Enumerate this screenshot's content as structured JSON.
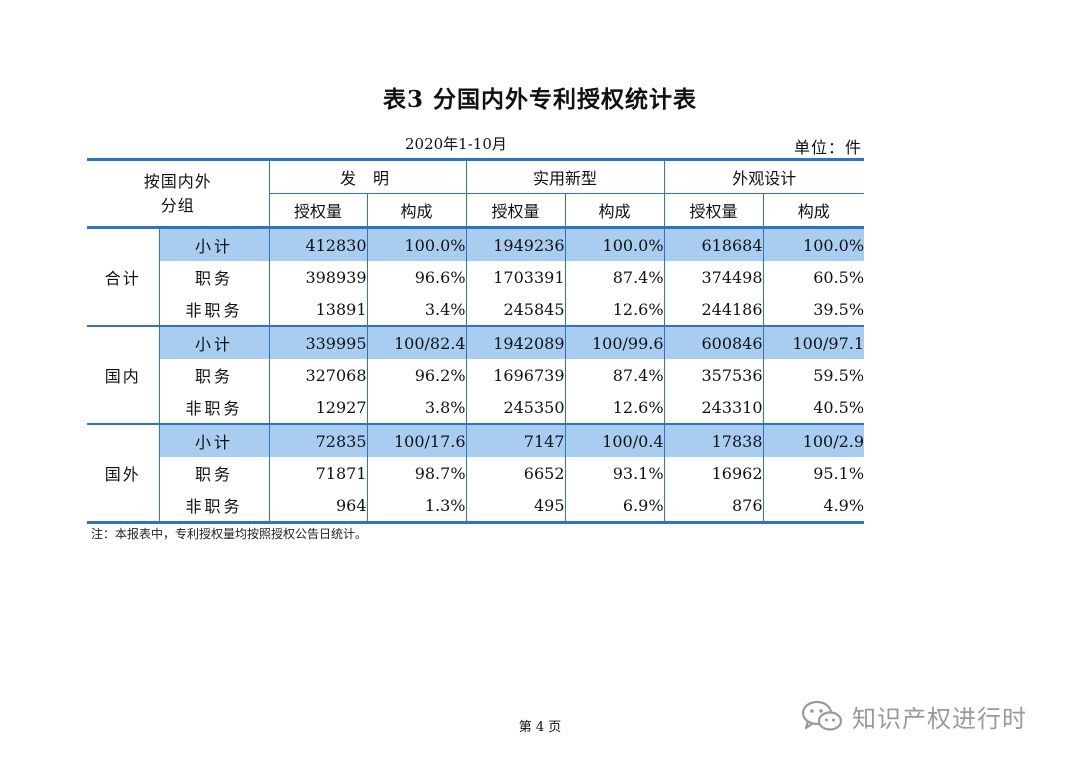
{
  "title": "表3 分国内外专利授权统计表",
  "period": "2020年1-10月",
  "unit": "单位：件",
  "header": {
    "group_label": "按国内外\n分组",
    "types": [
      "发 明",
      "实用新型",
      "外观设计"
    ],
    "sub_count": "授权量",
    "sub_share": "构成"
  },
  "groups": [
    {
      "name": "合计",
      "rows": [
        {
          "label": "小计",
          "invention": "412830",
          "invention_pct": "100.0%",
          "utility": "1949236",
          "utility_pct": "100.0%",
          "design": "618684",
          "design_pct": "100.0%"
        },
        {
          "label": "职务",
          "invention": "398939",
          "invention_pct": "96.6%",
          "utility": "1703391",
          "utility_pct": "87.4%",
          "design": "374498",
          "design_pct": "60.5%"
        },
        {
          "label": "非职务",
          "invention": "13891",
          "invention_pct": "3.4%",
          "utility": "245845",
          "utility_pct": "12.6%",
          "design": "244186",
          "design_pct": "39.5%"
        }
      ]
    },
    {
      "name": "国内",
      "rows": [
        {
          "label": "小计",
          "invention": "339995",
          "invention_pct": "100/82.4",
          "utility": "1942089",
          "utility_pct": "100/99.6",
          "design": "600846",
          "design_pct": "100/97.1"
        },
        {
          "label": "职务",
          "invention": "327068",
          "invention_pct": "96.2%",
          "utility": "1696739",
          "utility_pct": "87.4%",
          "design": "357536",
          "design_pct": "59.5%"
        },
        {
          "label": "非职务",
          "invention": "12927",
          "invention_pct": "3.8%",
          "utility": "245350",
          "utility_pct": "12.6%",
          "design": "243310",
          "design_pct": "40.5%"
        }
      ]
    },
    {
      "name": "国外",
      "rows": [
        {
          "label": "小计",
          "invention": "72835",
          "invention_pct": "100/17.6",
          "utility": "7147",
          "utility_pct": "100/0.4",
          "design": "17838",
          "design_pct": "100/2.9"
        },
        {
          "label": "职务",
          "invention": "71871",
          "invention_pct": "98.7%",
          "utility": "6652",
          "utility_pct": "93.1%",
          "design": "16962",
          "design_pct": "95.1%"
        },
        {
          "label": "非职务",
          "invention": "964",
          "invention_pct": "1.3%",
          "utility": "495",
          "utility_pct": "6.9%",
          "design": "876",
          "design_pct": "4.9%"
        }
      ]
    }
  ],
  "note": "注：本报表中，专利授权量均按照授权公告日统计。",
  "page_number": "第 4 页",
  "watermark": {
    "text": "知识产权进行时",
    "icon": "wechat-icon"
  }
}
